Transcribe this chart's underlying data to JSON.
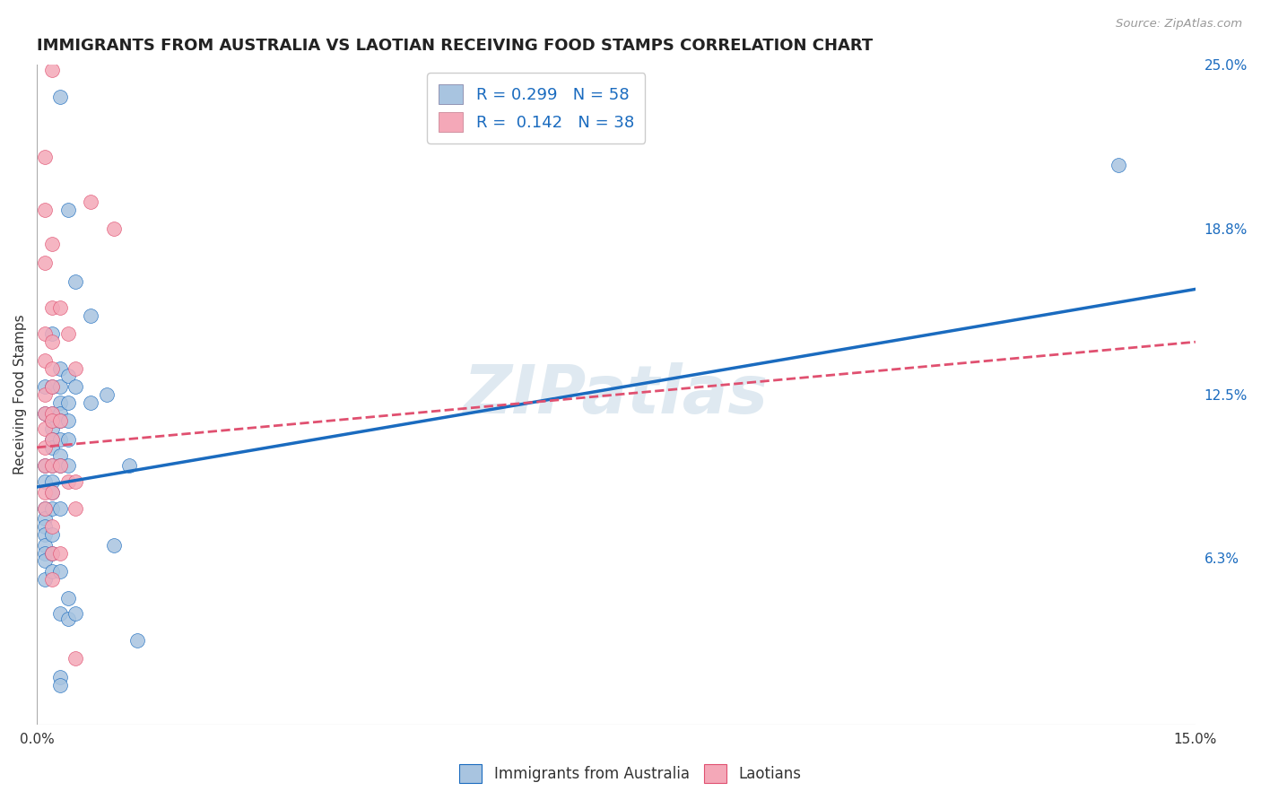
{
  "title": "IMMIGRANTS FROM AUSTRALIA VS LAOTIAN RECEIVING FOOD STAMPS CORRELATION CHART",
  "source": "Source: ZipAtlas.com",
  "ylabel": "Receiving Food Stamps",
  "x_min": 0.0,
  "x_max": 15.0,
  "y_min": 0.0,
  "y_max": 25.0,
  "x_ticks": [
    0.0,
    3.0,
    6.0,
    9.0,
    12.0,
    15.0
  ],
  "x_tick_labels": [
    "0.0%",
    "",
    "",
    "",
    "",
    "15.0%"
  ],
  "y_ticks_right": [
    0.0,
    6.3,
    12.5,
    18.8,
    25.0
  ],
  "y_tick_labels_right": [
    "",
    "6.3%",
    "12.5%",
    "18.8%",
    "25.0%"
  ],
  "australia_color": "#a8c4e0",
  "laotian_color": "#f4a8b8",
  "australia_line_color": "#1a6bbf",
  "laotian_line_color": "#e05070",
  "R_australia": 0.299,
  "N_australia": 58,
  "R_laotian": 0.142,
  "N_laotian": 38,
  "watermark": "ZIPatlas",
  "australia_points": [
    [
      0.1,
      12.8
    ],
    [
      0.1,
      11.8
    ],
    [
      0.1,
      9.8
    ],
    [
      0.1,
      9.2
    ],
    [
      0.1,
      8.2
    ],
    [
      0.1,
      7.8
    ],
    [
      0.1,
      7.5
    ],
    [
      0.1,
      7.2
    ],
    [
      0.1,
      6.8
    ],
    [
      0.1,
      6.5
    ],
    [
      0.1,
      6.2
    ],
    [
      0.1,
      5.5
    ],
    [
      0.2,
      14.8
    ],
    [
      0.2,
      12.8
    ],
    [
      0.2,
      11.8
    ],
    [
      0.2,
      11.5
    ],
    [
      0.2,
      11.2
    ],
    [
      0.2,
      10.8
    ],
    [
      0.2,
      10.5
    ],
    [
      0.2,
      9.8
    ],
    [
      0.2,
      9.2
    ],
    [
      0.2,
      8.8
    ],
    [
      0.2,
      8.2
    ],
    [
      0.2,
      7.2
    ],
    [
      0.2,
      6.5
    ],
    [
      0.2,
      5.8
    ],
    [
      0.3,
      23.8
    ],
    [
      0.3,
      13.5
    ],
    [
      0.3,
      12.8
    ],
    [
      0.3,
      12.2
    ],
    [
      0.3,
      11.8
    ],
    [
      0.3,
      11.5
    ],
    [
      0.3,
      10.8
    ],
    [
      0.3,
      10.2
    ],
    [
      0.3,
      9.8
    ],
    [
      0.3,
      8.2
    ],
    [
      0.3,
      5.8
    ],
    [
      0.3,
      4.2
    ],
    [
      0.3,
      1.8
    ],
    [
      0.3,
      1.5
    ],
    [
      0.4,
      19.5
    ],
    [
      0.4,
      13.2
    ],
    [
      0.4,
      12.2
    ],
    [
      0.4,
      11.5
    ],
    [
      0.4,
      10.8
    ],
    [
      0.4,
      9.8
    ],
    [
      0.4,
      4.8
    ],
    [
      0.4,
      4.0
    ],
    [
      0.5,
      16.8
    ],
    [
      0.5,
      12.8
    ],
    [
      0.5,
      4.2
    ],
    [
      0.7,
      15.5
    ],
    [
      0.7,
      12.2
    ],
    [
      0.9,
      12.5
    ],
    [
      1.0,
      6.8
    ],
    [
      1.2,
      9.8
    ],
    [
      1.3,
      3.2
    ],
    [
      14.0,
      21.2
    ]
  ],
  "laotian_points": [
    [
      0.1,
      21.5
    ],
    [
      0.1,
      19.5
    ],
    [
      0.1,
      17.5
    ],
    [
      0.1,
      14.8
    ],
    [
      0.1,
      13.8
    ],
    [
      0.1,
      12.5
    ],
    [
      0.1,
      11.8
    ],
    [
      0.1,
      11.2
    ],
    [
      0.1,
      10.5
    ],
    [
      0.1,
      9.8
    ],
    [
      0.1,
      8.8
    ],
    [
      0.1,
      8.2
    ],
    [
      0.2,
      24.8
    ],
    [
      0.2,
      18.2
    ],
    [
      0.2,
      15.8
    ],
    [
      0.2,
      14.5
    ],
    [
      0.2,
      13.5
    ],
    [
      0.2,
      12.8
    ],
    [
      0.2,
      11.8
    ],
    [
      0.2,
      11.5
    ],
    [
      0.2,
      10.8
    ],
    [
      0.2,
      9.8
    ],
    [
      0.2,
      8.8
    ],
    [
      0.2,
      7.5
    ],
    [
      0.2,
      6.5
    ],
    [
      0.2,
      5.5
    ],
    [
      0.3,
      15.8
    ],
    [
      0.3,
      11.5
    ],
    [
      0.3,
      9.8
    ],
    [
      0.3,
      6.5
    ],
    [
      0.4,
      14.8
    ],
    [
      0.4,
      9.2
    ],
    [
      0.5,
      13.5
    ],
    [
      0.5,
      9.2
    ],
    [
      0.5,
      8.2
    ],
    [
      0.5,
      2.5
    ],
    [
      0.7,
      19.8
    ],
    [
      1.0,
      18.8
    ]
  ],
  "aus_line_x0": 0.0,
  "aus_line_y0": 9.0,
  "aus_line_x1": 15.0,
  "aus_line_y1": 16.5,
  "lao_line_x0": 0.0,
  "lao_line_y0": 10.5,
  "lao_line_x1": 15.0,
  "lao_line_y1": 14.5,
  "background_color": "#ffffff",
  "grid_color": "#dddddd",
  "title_fontsize": 13,
  "axis_label_fontsize": 11,
  "tick_fontsize": 11,
  "legend_fontsize": 13
}
